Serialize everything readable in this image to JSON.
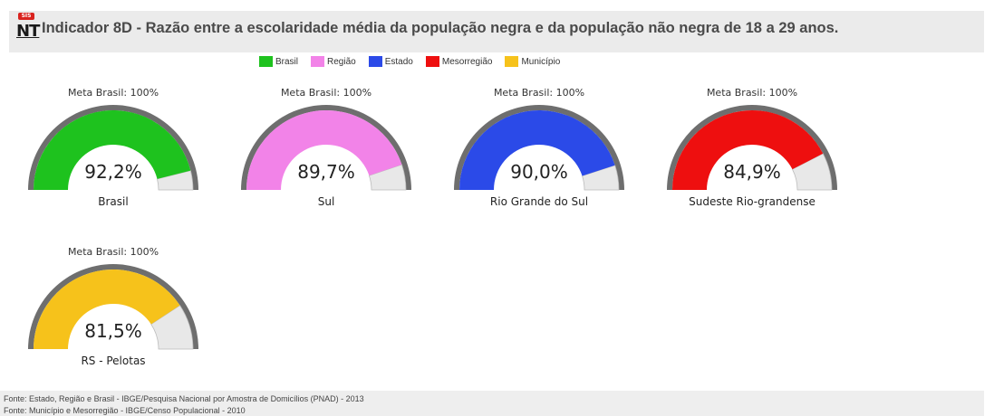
{
  "header": {
    "logo_badge": "SIS",
    "logo_text": "NT",
    "title": "Indicador 8D - Razão entre a escolaridade média da população negra e da população não negra de 18 a 29 anos."
  },
  "colors": {
    "brasil": "#1ec21e",
    "regiao": "#f283e8",
    "estado": "#2b4ae8",
    "mesorregiao": "#ee0f0f",
    "municipio": "#f6c21b",
    "track": "#6e6e6e",
    "remainder": "#e8e8e8"
  },
  "chart_data": {
    "type": "gauge",
    "title": "Indicador 8D - Razão entre a escolaridade média da população negra e da população não negra de 18 a 29 anos.",
    "legend": [
      {
        "name": "Brasil",
        "color": "#1ec21e"
      },
      {
        "name": "Região",
        "color": "#f283e8"
      },
      {
        "name": "Estado",
        "color": "#2b4ae8"
      },
      {
        "name": "Mesorregião",
        "color": "#ee0f0f"
      },
      {
        "name": "Município",
        "color": "#f6c21b"
      }
    ],
    "legend_placement": "top-center",
    "range": [
      0,
      100
    ],
    "target_label": "Meta Brasil: 100%",
    "gauges": [
      {
        "label": "Brasil",
        "value": 92.2,
        "display": "92,2%",
        "color": "#1ec21e"
      },
      {
        "label": "Sul",
        "value": 89.7,
        "display": "89,7%",
        "color": "#f283e8"
      },
      {
        "label": "Rio Grande do Sul",
        "value": 90.0,
        "display": "90,0%",
        "color": "#2b4ae8"
      },
      {
        "label": "Sudeste Rio-grandense",
        "value": 84.9,
        "display": "84,9%",
        "color": "#ee0f0f"
      },
      {
        "label": "RS - Pelotas",
        "value": 81.5,
        "display": "81,5%",
        "color": "#f6c21b"
      }
    ]
  },
  "footer": {
    "line1": "Fonte: Estado, Região e Brasil - IBGE/Pesquisa Nacional por Amostra de Domicílios (PNAD) - 2013",
    "line2": "Fonte: Município e Mesorregião - IBGE/Censo Populacional - 2010"
  }
}
